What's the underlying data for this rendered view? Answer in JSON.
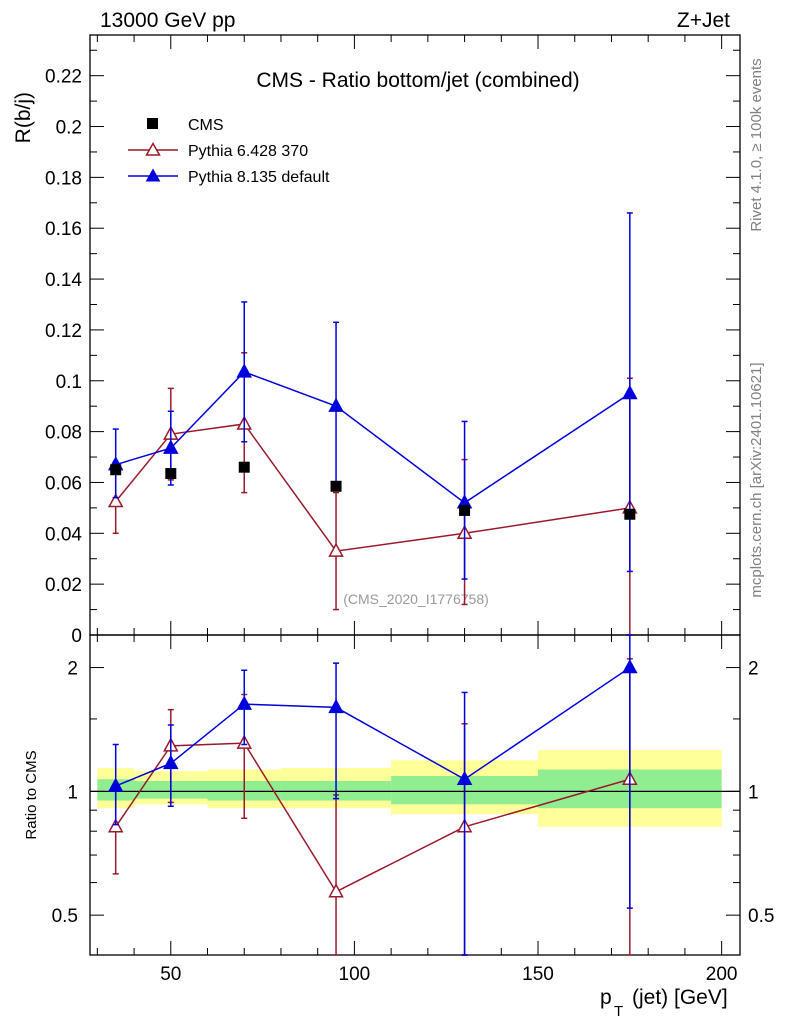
{
  "header": {
    "energy_label": "13000 GeV pp",
    "process_label": "Z+Jet"
  },
  "side_labels": {
    "rivet": "Rivet 4.1.0, ≥ 100k events",
    "mcplots": "mcplots.cern.ch [arXiv:2401.10621]"
  },
  "watermark": "(CMS_2020_I1776758)",
  "chart_data": {
    "type": "line",
    "title": "CMS - Ratio bottom/jet (combined)",
    "xlabel": "p_T (jet) [GeV]",
    "xlabel_main": "p",
    "xlabel_sub": "T",
    "xlabel_rest": "(jet) [GeV]",
    "ylabel": "R(b/j)",
    "ratio_ylabel": "Ratio to CMS",
    "xlim": [
      28,
      205
    ],
    "ylim": [
      0,
      0.236
    ],
    "ratio_ylim": [
      0.4,
      2.4
    ],
    "x_ticks": [
      50,
      100,
      150,
      200
    ],
    "x_tick_labels": [
      "50",
      "100",
      "150",
      "200"
    ],
    "y_ticks": [
      0,
      0.02,
      0.04,
      0.06,
      0.08,
      0.1,
      0.12,
      0.14,
      0.16,
      0.18,
      0.2,
      0.22
    ],
    "y_tick_labels": [
      "0",
      "0.02",
      "0.04",
      "0.06",
      "0.08",
      "0.1",
      "0.12",
      "0.14",
      "0.16",
      "0.18",
      "0.2",
      "0.22"
    ],
    "ratio_ticks": [
      0.5,
      1,
      2
    ],
    "ratio_tick_labels": [
      "0.5",
      "1",
      "2"
    ],
    "x": [
      35,
      50,
      70,
      95,
      130,
      175
    ],
    "bins": [
      [
        30,
        40
      ],
      [
        40,
        60
      ],
      [
        60,
        80
      ],
      [
        80,
        110
      ],
      [
        110,
        150
      ],
      [
        150,
        200
      ]
    ],
    "legend": [
      "CMS",
      "Pythia 6.428 370",
      "Pythia 8.135 default"
    ],
    "series": [
      {
        "name": "CMS",
        "values": [
          0.065,
          0.0635,
          0.066,
          0.0585,
          0.049,
          0.0475
        ],
        "band_inner": [
          [
            0.95,
            1.07
          ],
          [
            0.96,
            1.06
          ],
          [
            0.95,
            1.06
          ],
          [
            0.95,
            1.06
          ],
          [
            0.93,
            1.09
          ],
          [
            0.91,
            1.13
          ]
        ],
        "band_outer": [
          [
            0.91,
            1.14
          ],
          [
            0.93,
            1.12
          ],
          [
            0.91,
            1.13
          ],
          [
            0.91,
            1.14
          ],
          [
            0.88,
            1.19
          ],
          [
            0.82,
            1.26
          ]
        ]
      },
      {
        "name": "Pythia 6.428 370",
        "values": [
          0.0525,
          0.079,
          0.083,
          0.033,
          0.04,
          0.05
        ],
        "err_low": [
          0.04,
          0.061,
          0.056,
          0.01,
          0.012,
          0.0
        ],
        "err_high": [
          0.065,
          0.097,
          0.111,
          0.056,
          0.069,
          0.101
        ],
        "ratio": [
          0.82,
          1.29,
          1.31,
          0.57,
          0.82,
          1.07
        ],
        "ratio_low": [
          0.63,
          0.94,
          0.86,
          0.3,
          0.25,
          0.2
        ],
        "ratio_high": [
          1.02,
          1.58,
          1.72,
          0.98,
          1.46,
          2.1
        ]
      },
      {
        "name": "Pythia 8.135 default",
        "values": [
          0.067,
          0.0735,
          0.1035,
          0.09,
          0.052,
          0.095
        ],
        "err_low": [
          0.054,
          0.059,
          0.076,
          0.058,
          0.022,
          0.025
        ],
        "err_high": [
          0.081,
          0.088,
          0.131,
          0.123,
          0.084,
          0.166
        ],
        "ratio": [
          1.03,
          1.17,
          1.63,
          1.6,
          1.07,
          2.0
        ],
        "ratio_low": [
          0.83,
          0.92,
          1.3,
          0.96,
          0.38,
          0.52
        ],
        "ratio_high": [
          1.3,
          1.45,
          1.97,
          2.05,
          1.74,
          2.6
        ]
      }
    ],
    "colors": {
      "data": "#000000",
      "pythia6": "#9a1a2b",
      "pythia8": "#0000dd",
      "band_inner": "#90ee90",
      "band_outer": "#ffff99",
      "side_text": "#808080"
    }
  }
}
